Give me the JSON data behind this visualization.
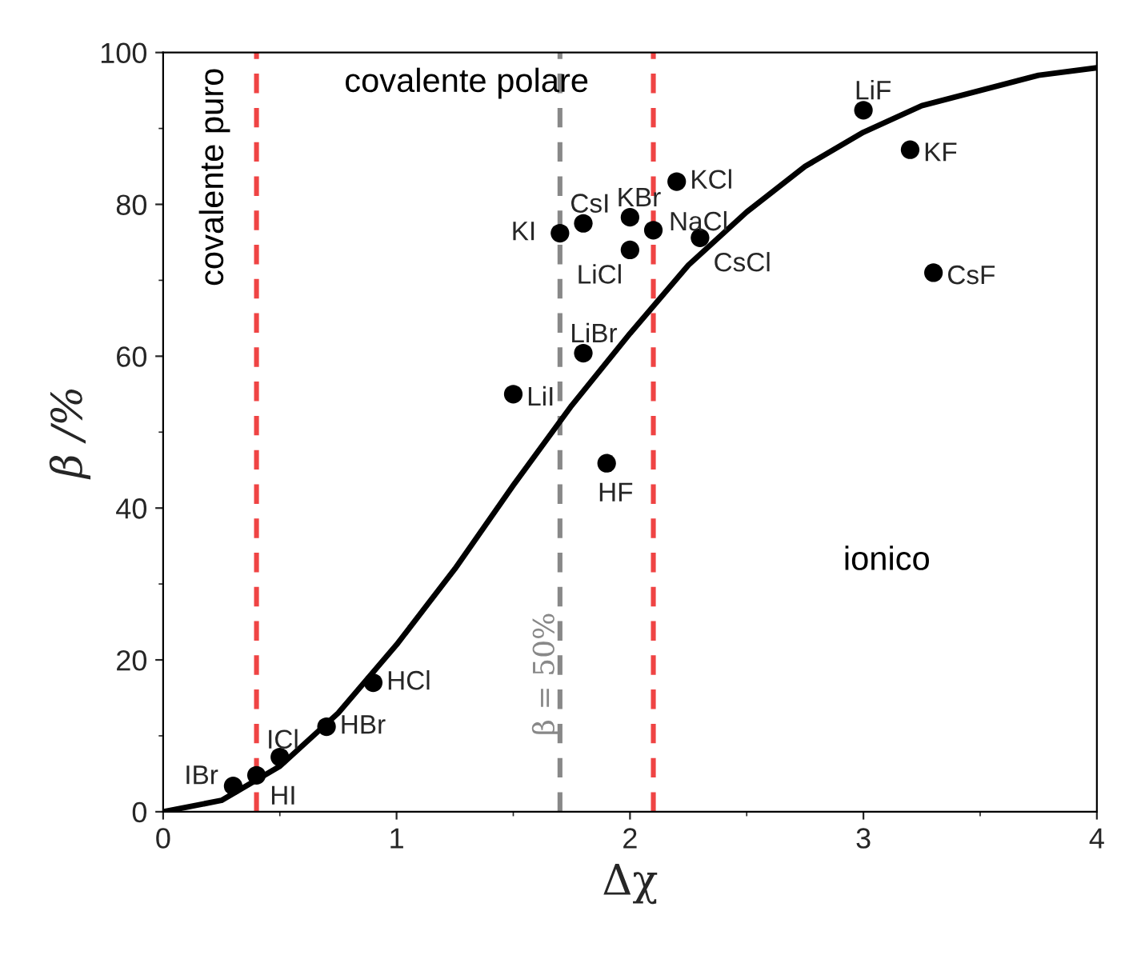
{
  "chart_data": {
    "type": "scatter",
    "xlabel": "Δχ",
    "ylabel": "β /%",
    "xlim": [
      0,
      4
    ],
    "ylim": [
      0,
      100
    ],
    "xticks": [
      0,
      1,
      2,
      3,
      4
    ],
    "yticks": [
      0,
      20,
      40,
      60,
      80,
      100
    ],
    "grid": false,
    "series": [
      {
        "type": "line",
        "marker": "none",
        "color": "#000000",
        "x": [
          0,
          0.25,
          0.5,
          0.75,
          1,
          1.25,
          1.5,
          1.75,
          2,
          2.25,
          2.5,
          2.75,
          3,
          3.25,
          3.5,
          3.75,
          4
        ],
        "values": [
          0,
          1.5,
          6,
          13,
          22,
          32,
          43,
          53.5,
          63,
          72,
          79,
          85,
          89.5,
          93,
          95,
          97,
          98
        ]
      },
      {
        "marker": "circle",
        "color": "#000000",
        "x": [
          0.3,
          0.4,
          0.5,
          0.7,
          0.9,
          1.5,
          1.8,
          1.9,
          1.7,
          1.8,
          2.0,
          2.0,
          2.1,
          2.2,
          2.3,
          3.0,
          3.2,
          3.3
        ],
        "values": [
          3.4,
          4.8,
          7.2,
          11.2,
          17,
          55,
          60.4,
          45.9,
          76.2,
          77.5,
          78.3,
          74,
          76.6,
          83,
          75.6,
          92.4,
          87.2,
          71
        ]
      }
    ],
    "ref_lines": [
      {
        "axis": "x",
        "value": 0.4,
        "color": "#ef4444",
        "line_style": "dashed"
      },
      {
        "axis": "x",
        "value": 1.7,
        "color": "#888888",
        "line_style": "dashed"
      },
      {
        "axis": "x",
        "value": 2.1,
        "color": "#ef4444",
        "line_style": "dashed"
      }
    ],
    "annotations": [
      "covalente puro",
      "covalente polare",
      "ionico",
      "β = 50%",
      {
        "text": "IBr",
        "x": 0.3,
        "y": 3.4
      },
      {
        "text": "HI",
        "x": 0.4,
        "y": 4.8
      },
      {
        "text": "ICl",
        "x": 0.5,
        "y": 7.2
      },
      {
        "text": "HBr",
        "x": 0.7,
        "y": 11.2
      },
      {
        "text": "HCl",
        "x": 0.9,
        "y": 17
      },
      {
        "text": "LiI",
        "x": 1.5,
        "y": 55
      },
      {
        "text": "LiBr",
        "x": 1.8,
        "y": 60.4
      },
      {
        "text": "HF",
        "x": 1.9,
        "y": 45.9
      },
      {
        "text": "KI",
        "x": 1.7,
        "y": 76.2
      },
      {
        "text": "CsI",
        "x": 1.8,
        "y": 77.5
      },
      {
        "text": "KBr",
        "x": 2.0,
        "y": 78.3
      },
      {
        "text": "LiCl",
        "x": 2.0,
        "y": 74
      },
      {
        "text": "NaCl",
        "x": 2.1,
        "y": 76.6
      },
      {
        "text": "KCl",
        "x": 2.2,
        "y": 83
      },
      {
        "text": "CsCl",
        "x": 2.3,
        "y": 75.6
      },
      {
        "text": "LiF",
        "x": 3.0,
        "y": 92.4
      },
      {
        "text": "KF",
        "x": 3.2,
        "y": 87.2
      },
      {
        "text": "CsF",
        "x": 3.3,
        "y": 71
      }
    ]
  }
}
